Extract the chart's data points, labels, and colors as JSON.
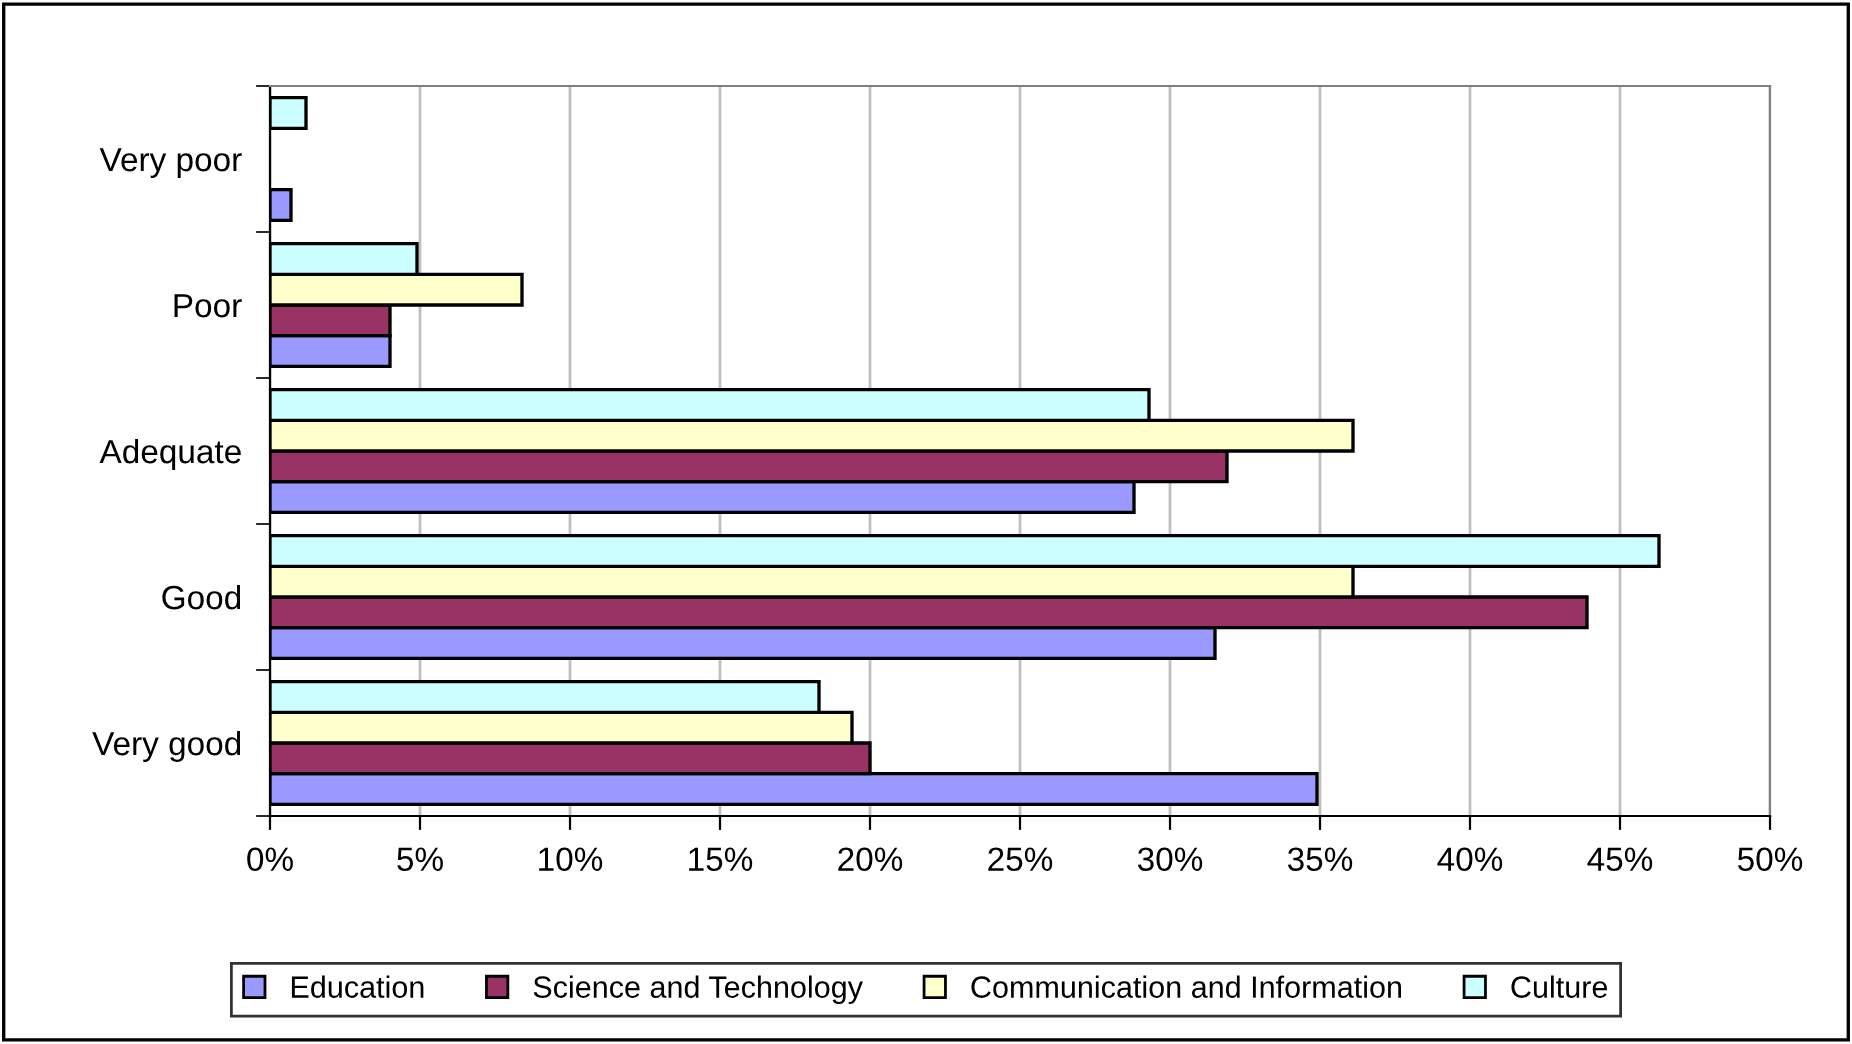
{
  "chart_data": {
    "type": "bar",
    "orientation": "horizontal",
    "categories": [
      "Very poor",
      "Poor",
      "Adequate",
      "Good",
      "Very good"
    ],
    "series": [
      {
        "name": "Education",
        "color": "#9999ff",
        "values": [
          0.7,
          4.0,
          28.8,
          31.5,
          34.9
        ]
      },
      {
        "name": "Science and Technology",
        "color": "#993366",
        "values": [
          null,
          4.0,
          31.9,
          43.9,
          20.0
        ]
      },
      {
        "name": "Communication and Information",
        "color": "#ffffcc",
        "values": [
          null,
          8.4,
          36.1,
          36.1,
          19.4
        ]
      },
      {
        "name": "Culture",
        "color": "#ccffff",
        "values": [
          1.2,
          4.9,
          29.3,
          46.3,
          18.3
        ]
      }
    ],
    "xlim": [
      0,
      50
    ],
    "xticks": [
      {
        "value": 0,
        "label": "0%"
      },
      {
        "value": 5,
        "label": "5%"
      },
      {
        "value": 10,
        "label": "10%"
      },
      {
        "value": 15,
        "label": "15%"
      },
      {
        "value": 20,
        "label": "20%"
      },
      {
        "value": 25,
        "label": "25%"
      },
      {
        "value": 30,
        "label": "30%"
      },
      {
        "value": 35,
        "label": "35%"
      },
      {
        "value": 40,
        "label": "40%"
      },
      {
        "value": 45,
        "label": "45%"
      },
      {
        "value": 50,
        "label": "50%"
      }
    ],
    "grid": "x",
    "legend": "bottom"
  }
}
